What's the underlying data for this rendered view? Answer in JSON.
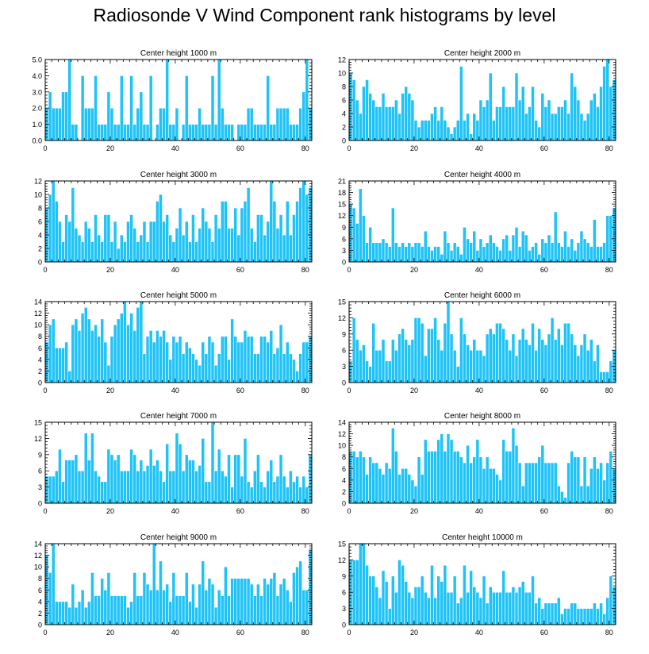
{
  "title": "Radiosonde V Wind Component rank histograms by level",
  "colors": {
    "bar": "#1ec3f8",
    "bar_edge": "#ffffff",
    "axis": "#000000"
  },
  "chart_data": [
    {
      "type": "bar",
      "title": "Center height 1000 m",
      "xlabel": "",
      "ylabel": "",
      "xlim": [
        0,
        82
      ],
      "ylim": [
        0,
        5
      ],
      "xticks": [
        0,
        20,
        40,
        60,
        80
      ],
      "yticks": [
        0,
        1,
        2,
        3,
        4,
        5
      ],
      "ytick_labels": [
        "0.0",
        "1.0",
        "2.0",
        "3.0",
        "4.0",
        "5.0"
      ],
      "values": [
        2,
        3,
        2,
        2,
        2,
        3,
        3,
        5,
        1,
        1,
        0,
        4,
        2,
        2,
        2,
        4,
        1,
        1,
        1,
        3,
        2,
        1,
        1,
        4,
        1,
        1,
        4,
        1,
        2,
        3,
        1,
        1,
        4,
        0,
        1,
        2,
        2,
        5,
        1,
        1,
        2,
        0,
        1,
        4,
        1,
        1,
        1,
        2,
        1,
        1,
        1,
        4,
        1,
        5,
        2,
        1,
        1,
        1,
        0,
        1,
        1,
        1,
        2,
        2,
        1,
        1,
        1,
        1,
        4,
        1,
        1,
        2,
        2,
        2,
        2,
        1,
        1,
        1,
        2,
        3,
        5,
        2
      ]
    },
    {
      "type": "bar",
      "title": "Center height 2000 m",
      "xlabel": "",
      "ylabel": "",
      "xlim": [
        0,
        82
      ],
      "ylim": [
        0,
        12
      ],
      "xticks": [
        0,
        20,
        40,
        60,
        80
      ],
      "yticks": [
        0,
        2,
        4,
        6,
        8,
        10,
        12
      ],
      "ytick_labels": [
        "0",
        "2",
        "4",
        "6",
        "8",
        "10",
        "12"
      ],
      "values": [
        10,
        9,
        6,
        4,
        8,
        9,
        7,
        6,
        5,
        5,
        7,
        5,
        5,
        5,
        6,
        4,
        7,
        8,
        7,
        6,
        3,
        2,
        3,
        3,
        3,
        4,
        5,
        3,
        5,
        3,
        2,
        1,
        2,
        3,
        11,
        3,
        4,
        1,
        4,
        3,
        6,
        5,
        6,
        10,
        3,
        5,
        5,
        8,
        5,
        5,
        5,
        10,
        6,
        8,
        4,
        5,
        8,
        3,
        2,
        7,
        5,
        6,
        4,
        4,
        5,
        5,
        6,
        4,
        10,
        8,
        6,
        4,
        3,
        4,
        6,
        7,
        5,
        8,
        11,
        12,
        8,
        9
      ]
    },
    {
      "type": "bar",
      "title": "Center height 3000 m",
      "xlabel": "",
      "ylabel": "",
      "xlim": [
        0,
        82
      ],
      "ylim": [
        0,
        12
      ],
      "xticks": [
        0,
        20,
        40,
        60,
        80
      ],
      "yticks": [
        0,
        2,
        4,
        6,
        8,
        10,
        12
      ],
      "ytick_labels": [
        "0",
        "2",
        "4",
        "6",
        "8",
        "10",
        "12"
      ],
      "values": [
        8,
        10,
        12,
        9,
        6,
        3,
        7,
        6,
        11,
        5,
        4,
        3,
        6,
        5,
        3,
        7,
        4,
        3,
        7,
        7,
        3,
        6,
        2,
        4,
        3,
        6,
        7,
        5,
        3,
        4,
        6,
        3,
        6,
        6,
        9,
        10,
        6,
        7,
        4,
        3,
        5,
        8,
        4,
        6,
        3,
        7,
        3,
        5,
        8,
        6,
        5,
        3,
        7,
        5,
        9,
        9,
        5,
        5,
        8,
        4,
        8,
        9,
        11,
        5,
        3,
        7,
        7,
        4,
        6,
        12,
        9,
        5,
        7,
        4,
        9,
        4,
        7,
        9,
        11,
        12,
        10,
        11
      ]
    },
    {
      "type": "bar",
      "title": "Center height 4000 m",
      "xlabel": "",
      "ylabel": "",
      "xlim": [
        0,
        82
      ],
      "ylim": [
        0,
        21
      ],
      "xticks": [
        0,
        20,
        40,
        60,
        80
      ],
      "yticks": [
        0,
        3,
        6,
        9,
        12,
        15,
        18,
        21
      ],
      "ytick_labels": [
        "0",
        "3",
        "6",
        "9",
        "12",
        "15",
        "18",
        "21"
      ],
      "values": [
        15,
        14,
        10,
        19,
        12,
        5,
        9,
        5,
        5,
        5,
        6,
        5,
        4,
        14,
        5,
        4,
        5,
        4,
        5,
        4,
        5,
        5,
        4,
        8,
        4,
        3,
        4,
        4,
        2,
        8,
        5,
        3,
        5,
        4,
        2,
        9,
        6,
        5,
        8,
        3,
        6,
        4,
        5,
        7,
        5,
        4,
        3,
        6,
        7,
        3,
        7,
        9,
        4,
        8,
        7,
        3,
        4,
        5,
        2,
        6,
        5,
        7,
        5,
        13,
        5,
        4,
        8,
        4,
        6,
        3,
        5,
        8,
        6,
        5,
        4,
        11,
        4,
        4,
        5,
        12,
        12,
        14
      ]
    },
    {
      "type": "bar",
      "title": "Center height 5000 m",
      "xlabel": "",
      "ylabel": "",
      "xlim": [
        0,
        82
      ],
      "ylim": [
        0,
        14
      ],
      "xticks": [
        0,
        20,
        40,
        60,
        80
      ],
      "yticks": [
        0,
        2,
        4,
        6,
        8,
        10,
        12,
        14
      ],
      "ytick_labels": [
        "0",
        "2",
        "4",
        "6",
        "8",
        "10",
        "12",
        "14"
      ],
      "values": [
        7,
        10,
        11,
        6,
        6,
        6,
        7,
        2,
        10,
        11,
        9,
        12,
        13,
        11,
        9,
        10,
        8,
        11,
        7,
        3,
        8,
        10,
        11,
        12,
        14,
        10,
        12,
        9,
        13,
        14,
        5,
        8,
        9,
        7,
        9,
        8,
        9,
        7,
        4,
        8,
        7,
        8,
        5,
        7,
        6,
        5,
        4,
        3,
        7,
        5,
        8,
        7,
        3,
        5,
        8,
        8,
        4,
        11,
        8,
        7,
        7,
        9,
        8,
        8,
        5,
        5,
        8,
        8,
        7,
        9,
        5,
        6,
        10,
        5,
        7,
        5,
        4,
        2,
        5,
        7,
        7,
        8
      ]
    },
    {
      "type": "bar",
      "title": "Center height 6000 m",
      "xlabel": "",
      "ylabel": "",
      "xlim": [
        0,
        82
      ],
      "ylim": [
        0,
        15
      ],
      "xticks": [
        0,
        20,
        40,
        60,
        80
      ],
      "yticks": [
        0,
        3,
        6,
        9,
        12,
        15
      ],
      "ytick_labels": [
        "0",
        "3",
        "6",
        "9",
        "12",
        "15"
      ],
      "values": [
        4,
        12,
        8,
        6,
        7,
        4,
        3,
        11,
        6,
        6,
        8,
        4,
        4,
        8,
        6,
        9,
        10,
        8,
        7,
        8,
        12,
        12,
        11,
        5,
        10,
        10,
        12,
        8,
        6,
        11,
        15,
        9,
        6,
        3,
        12,
        9,
        7,
        6,
        8,
        6,
        6,
        5,
        9,
        10,
        9,
        11,
        11,
        10,
        8,
        6,
        9,
        5,
        8,
        10,
        8,
        7,
        11,
        6,
        10,
        8,
        7,
        9,
        12,
        8,
        10,
        7,
        11,
        11,
        9,
        7,
        5,
        7,
        9,
        6,
        8,
        4,
        7,
        2,
        2,
        2,
        4,
        6
      ]
    },
    {
      "type": "bar",
      "title": "Center height 7000 m",
      "xlabel": "",
      "ylabel": "",
      "xlim": [
        0,
        82
      ],
      "ylim": [
        0,
        15
      ],
      "xticks": [
        0,
        20,
        40,
        60,
        80
      ],
      "yticks": [
        0,
        3,
        6,
        9,
        12,
        15
      ],
      "ytick_labels": [
        "0",
        "3",
        "6",
        "9",
        "12",
        "15"
      ],
      "values": [
        5,
        5,
        5,
        6,
        10,
        4,
        8,
        8,
        8,
        9,
        6,
        6,
        13,
        8,
        13,
        6,
        5,
        4,
        4,
        10,
        9,
        8,
        9,
        6,
        6,
        6,
        10,
        9,
        6,
        8,
        6,
        7,
        10,
        7,
        8,
        6,
        4,
        11,
        6,
        6,
        13,
        11,
        6,
        9,
        8,
        8,
        6,
        7,
        12,
        4,
        4,
        15,
        6,
        10,
        6,
        5,
        9,
        3,
        9,
        9,
        5,
        12,
        4,
        3,
        6,
        9,
        4,
        3,
        6,
        8,
        4,
        5,
        9,
        5,
        3,
        6,
        4,
        5,
        3,
        5,
        3,
        9
      ]
    },
    {
      "type": "bar",
      "title": "Center height 8000 m",
      "xlabel": "",
      "ylabel": "",
      "xlim": [
        0,
        82
      ],
      "ylim": [
        0,
        14
      ],
      "xticks": [
        0,
        20,
        40,
        60,
        80
      ],
      "yticks": [
        0,
        2,
        4,
        6,
        8,
        10,
        12,
        14
      ],
      "ytick_labels": [
        "0",
        "2",
        "4",
        "6",
        "8",
        "10",
        "12",
        "14"
      ],
      "values": [
        9,
        9,
        8,
        9,
        8,
        5,
        8,
        7,
        7,
        6,
        5,
        7,
        6,
        13,
        9,
        5,
        6,
        6,
        5,
        4,
        3,
        8,
        5,
        11,
        9,
        9,
        9,
        11,
        12,
        9,
        12,
        11,
        9,
        9,
        8,
        7,
        10,
        7,
        8,
        11,
        8,
        6,
        8,
        6,
        6,
        5,
        4,
        11,
        9,
        9,
        13,
        10,
        7,
        3,
        7,
        7,
        7,
        7,
        8,
        10,
        7,
        7,
        7,
        7,
        3,
        2,
        1,
        7,
        9,
        8,
        8,
        3,
        8,
        3,
        6,
        8,
        6,
        7,
        4,
        7,
        9,
        6
      ]
    },
    {
      "type": "bar",
      "title": "Center height 9000 m",
      "xlabel": "",
      "ylabel": "",
      "xlim": [
        0,
        82
      ],
      "ylim": [
        0,
        14
      ],
      "xticks": [
        0,
        20,
        40,
        60,
        80
      ],
      "yticks": [
        0,
        2,
        4,
        6,
        8,
        10,
        12,
        14
      ],
      "ytick_labels": [
        "0",
        "2",
        "4",
        "6",
        "8",
        "10",
        "12",
        "14"
      ],
      "values": [
        12,
        9,
        14,
        4,
        4,
        4,
        4,
        3,
        7,
        3,
        4,
        6,
        3,
        4,
        9,
        5,
        5,
        8,
        6,
        9,
        5,
        5,
        5,
        5,
        5,
        3,
        4,
        9,
        5,
        5,
        9,
        7,
        6,
        14,
        6,
        11,
        6,
        7,
        4,
        9,
        5,
        5,
        5,
        9,
        4,
        7,
        3,
        7,
        11,
        6,
        8,
        7,
        3,
        6,
        5,
        10,
        5,
        8,
        8,
        8,
        8,
        8,
        8,
        7,
        5,
        7,
        5,
        8,
        7,
        8,
        9,
        5,
        7,
        8,
        6,
        4,
        9,
        10,
        11,
        6,
        6,
        13
      ]
    },
    {
      "type": "bar",
      "title": "Center height 10000 m",
      "xlabel": "",
      "ylabel": "",
      "xlim": [
        0,
        82
      ],
      "ylim": [
        0,
        15
      ],
      "xticks": [
        0,
        20,
        40,
        60,
        80
      ],
      "yticks": [
        0,
        3,
        6,
        9,
        12,
        15
      ],
      "ytick_labels": [
        "0",
        "3",
        "6",
        "9",
        "12",
        "15"
      ],
      "values": [
        12,
        12,
        12,
        15,
        15,
        11,
        9,
        9,
        7,
        5,
        10,
        8,
        3,
        9,
        6,
        12,
        11,
        8,
        6,
        5,
        7,
        7,
        9,
        6,
        5,
        11,
        5,
        9,
        8,
        11,
        6,
        6,
        9,
        4,
        5,
        11,
        6,
        10,
        7,
        6,
        5,
        9,
        4,
        7,
        6,
        6,
        6,
        10,
        6,
        6,
        7,
        6,
        7,
        8,
        6,
        6,
        9,
        4,
        5,
        3,
        4,
        4,
        4,
        4,
        5,
        2,
        3,
        3,
        4,
        4,
        3,
        3,
        3,
        3,
        3,
        4,
        3,
        4,
        2,
        5,
        9,
        7
      ]
    }
  ]
}
